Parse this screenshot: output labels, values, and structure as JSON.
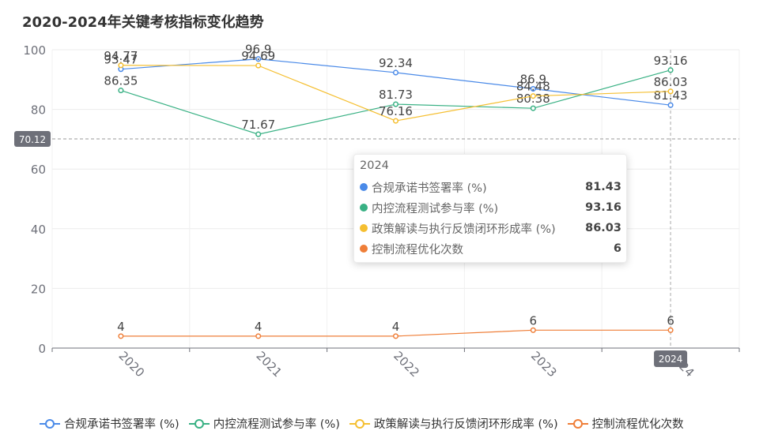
{
  "chart_data": {
    "type": "line",
    "title": "2020-2024年关键考核指标变化趋势",
    "categories": [
      "2020",
      "2021",
      "2022",
      "2023",
      "2024"
    ],
    "ylim": [
      0,
      100
    ],
    "yticks": [
      0,
      20,
      40,
      60,
      80,
      100
    ],
    "series": [
      {
        "name": "合规承诺书签署率 (%)",
        "color": "#4a8ae8",
        "values": [
          93.47,
          96.9,
          92.34,
          86.9,
          81.43
        ]
      },
      {
        "name": "内控流程测试参与率 (%)",
        "color": "#39b184",
        "values": [
          86.35,
          71.67,
          81.73,
          80.38,
          93.16
        ]
      },
      {
        "name": "政策解读与执行反馈闭环形成率 (%)",
        "color": "#f5bf31",
        "values": [
          94.77,
          94.69,
          76.16,
          84.48,
          86.03
        ]
      },
      {
        "name": "控制流程优化次数",
        "color": "#ef7e38",
        "values": [
          4,
          4,
          4,
          6,
          6
        ]
      }
    ],
    "crosshair": {
      "y_value": "70.12",
      "x_value": "2024"
    },
    "tooltip": {
      "title": "2024",
      "rows": [
        {
          "name": "合规承诺书签署率 (%)",
          "value": "81.43",
          "color": "#4a8ae8"
        },
        {
          "name": "内控流程测试参与率 (%)",
          "value": "93.16",
          "color": "#39b184"
        },
        {
          "name": "政策解读与执行反馈闭环形成率 (%)",
          "value": "86.03",
          "color": "#f5bf31"
        },
        {
          "name": "控制流程优化次数",
          "value": "6",
          "color": "#ef7e38"
        }
      ]
    },
    "legend": [
      {
        "name": "合规承诺书签署率 (%)",
        "color": "#4a8ae8"
      },
      {
        "name": "内控流程测试参与率 (%)",
        "color": "#39b184"
      },
      {
        "name": "政策解读与执行反馈闭环形成率 (%)",
        "color": "#f5bf31"
      },
      {
        "name": "控制流程优化次数",
        "color": "#ef7e38"
      }
    ]
  }
}
